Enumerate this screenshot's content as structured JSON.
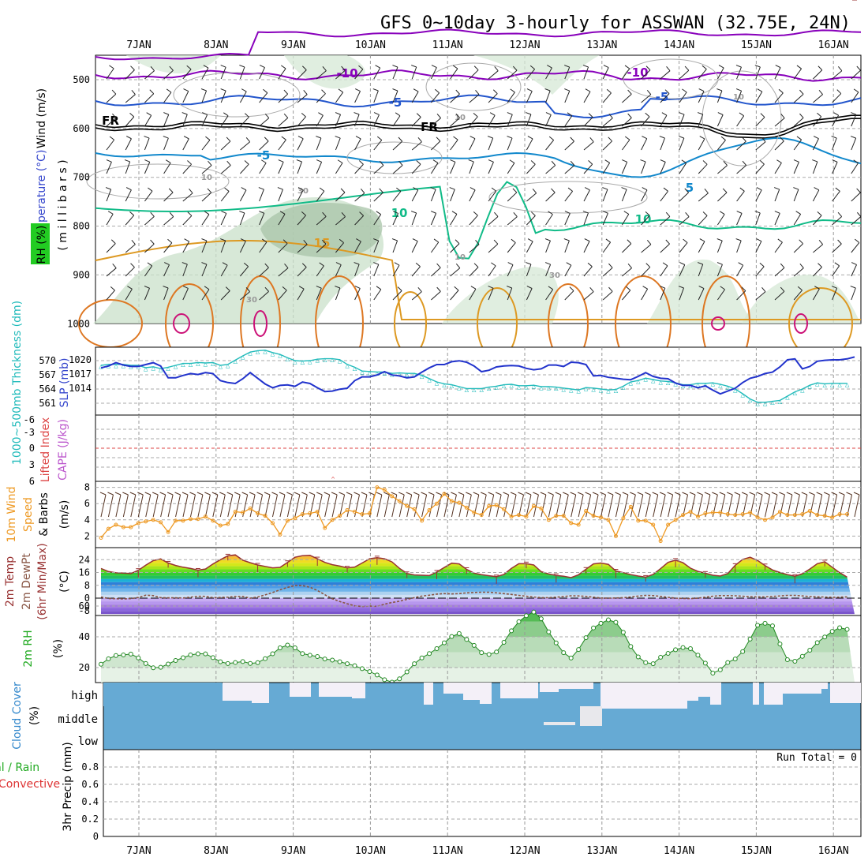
{
  "title": "GFS 0~10day 3-hourly for ASSWAN (32.75E, 24N)",
  "dates": [
    "7JAN",
    "8JAN",
    "9JAN",
    "10JAN",
    "11JAN",
    "12JAN",
    "13JAN",
    "14JAN",
    "15JAN",
    "16JAN"
  ],
  "panels": {
    "upper": {
      "label_wind": "Wind (m/s)",
      "label_temp": "Temperature (°C)",
      "label_rh": "RH (%)",
      "label_mb": "( m i l l i b a r s )",
      "yticks": [
        "500",
        "600",
        "700",
        "800",
        "900",
        "1000"
      ],
      "contour_labels": [
        "-10",
        "-10",
        "-5",
        "-5",
        "FR",
        "FR",
        "-5",
        "5",
        "10",
        "10",
        "15",
        "10",
        "30",
        "30",
        "10",
        "30",
        "10",
        "10"
      ]
    },
    "thickness": {
      "label_thk": "1000~500mb Thickness (dm)",
      "label_slp": "SLP (mb)",
      "yticks_left": [
        "570",
        "567",
        "564",
        "561"
      ],
      "yticks_right": [
        "1020",
        "1017",
        "1014"
      ]
    },
    "stability": {
      "label_li": "Lifted Index",
      "label_cape": "CAPE (J/kg)",
      "yticks": [
        "-6",
        "-3",
        "0",
        "3",
        "6"
      ]
    },
    "wind10": {
      "label1": "10m Wind",
      "label2": "Speed",
      "label3": "& Barbs",
      "unit": "(m/s)",
      "yticks": [
        "8",
        "6",
        "4",
        "2"
      ]
    },
    "temp2m": {
      "label1": "2m Temp",
      "label2": "2m DewPt",
      "label3": "(6hr Min/Max)",
      "unit": "(°C)",
      "yticks": [
        "24",
        "16",
        "8",
        "0",
        "-8"
      ]
    },
    "rh2m": {
      "label": "2m RH",
      "unit": "(%)",
      "yticks": [
        "60",
        "40",
        "20"
      ]
    },
    "cloud": {
      "label": "Cloud Cover",
      "unit": "(%)",
      "levels": [
        "high",
        "middle",
        "low"
      ]
    },
    "precip": {
      "label1": "Total / Rain",
      "label2": "Convective",
      "axis_label": "3hr Precip (mm)",
      "run_total": "Run Total = 0",
      "yticks": [
        "0.8",
        "0.6",
        "0.4",
        "0.2",
        "0"
      ]
    }
  },
  "colors": {
    "slp": "#2233cc",
    "thickness": "#22bbbb",
    "wind_speed": "#ee9922",
    "temp_line": "#993333",
    "dewpoint": "#885544",
    "rh_fill": "#55bb55",
    "cloud": "#66aad4",
    "cloud_clear": "#f4f0f8",
    "temp_neg10": "#8800bb",
    "temp_neg5": "#2255cc",
    "temp_fr": "#000000",
    "temp_5": "#1188cc",
    "temp_10": "#11bb88",
    "temp_15": "#dd9922",
    "temp_20": "#dd7722",
    "temp_25": "#cc1177"
  },
  "chart_data": [
    {
      "type": "line",
      "title": "SLP (mb)",
      "x_unit": "3-hourly steps from 6 Jan 12Z",
      "ylim": [
        1012,
        1022
      ],
      "series": [
        {
          "name": "SLP (mb)",
          "values": [
            1018.3,
            1018.7,
            1019.4,
            1018.9,
            1018.6,
            1018.6,
            1019.0,
            1019.4,
            1018.7,
            1016.2,
            1016.2,
            1016.7,
            1017.1,
            1016.9,
            1017.3,
            1017.1,
            1015.6,
            1015.2,
            1015.0,
            1016.0,
            1017.3,
            1016.1,
            1014.9,
            1014.1,
            1014.6,
            1014.7,
            1014.4,
            1015.3,
            1015.0,
            1014.1,
            1013.3,
            1013.4,
            1013.8,
            1014.0,
            1015.6,
            1016.4,
            1016.4,
            1016.8,
            1017.5,
            1016.8,
            1016.6,
            1016.2,
            1016.4,
            1017.4,
            1018.3,
            1019.0,
            1019.0,
            1019.6,
            1019.8,
            1019.5,
            1018.7,
            1017.5,
            1017.8,
            1018.5,
            1018.7,
            1018.8,
            1018.7,
            1018.2,
            1017.9,
            1018.1,
            1018.9,
            1018.9,
            1018.6,
            1019.5,
            1019.4,
            1019.0,
            1016.6,
            1016.7,
            1016.3,
            1016.1,
            1015.9,
            1015.8,
            1016.5,
            1017.3,
            1016.5,
            1016.1,
            1016.0,
            1015.1,
            1014.6,
            1014.6,
            1014.1,
            1014.5,
            1013.6,
            1012.8,
            1013.4,
            1014.0,
            1015.2,
            1016.1,
            1016.5,
            1017.1,
            1017.4,
            1018.5,
            1020.0,
            1020.2,
            1018.1,
            1018.6,
            1019.7,
            1019.9,
            1020.0,
            1020.0,
            1020.2,
            1020.6
          ]
        }
      ]
    },
    {
      "type": "line",
      "title": "1000~500mb Thickness (dm)",
      "x_unit": "3-hourly steps from 6 Jan 12Z",
      "ylim": [
        559,
        573
      ],
      "series": [
        {
          "name": "1000~500mb Thickness (dm)",
          "values": [
            569.0,
            569.2,
            569.2,
            569.2,
            569.0,
            569.0,
            568.5,
            568.7,
            568.3,
            568.6,
            569.0,
            569.4,
            569.4,
            569.6,
            569.5,
            569.6,
            569.0,
            569.2,
            570.1,
            571.0,
            571.8,
            572.1,
            572.2,
            571.7,
            571.3,
            570.6,
            570.0,
            569.9,
            570.0,
            570.3,
            570.4,
            570.4,
            570.2,
            569.2,
            568.6,
            567.8,
            567.7,
            567.6,
            567.6,
            567.3,
            567.4,
            567.3,
            567.3,
            566.9,
            566.2,
            565.5,
            565.1,
            564.9,
            564.5,
            564.1,
            564.1,
            564.1,
            564.4,
            564.6,
            564.9,
            565.0,
            564.7,
            564.7,
            564.8,
            564.5,
            564.5,
            564.4,
            564.2,
            564.0,
            563.8,
            564.3,
            564.2,
            564.0,
            563.8,
            563.9,
            564.6,
            565.5,
            565.8,
            566.3,
            566.0,
            565.7,
            565.6,
            565.3,
            564.9,
            564.9,
            565.2,
            565.2,
            565.3,
            565.0,
            564.6,
            564.0,
            563.0,
            561.9,
            561.2,
            561.2,
            561.4,
            561.6,
            562.5,
            563.4,
            564.0,
            564.8,
            565.3,
            565.1,
            565.2,
            565.2,
            565.2
          ]
        }
      ]
    },
    {
      "type": "line",
      "title": "10m Wind Speed (m/s)",
      "x_unit": "3-hourly steps from 6 Jan 12Z",
      "ylim": [
        0,
        9
      ],
      "series": [
        {
          "name": "10m Wind Speed (m/s)",
          "values": [
            1.8,
            2.9,
            3.4,
            3.1,
            3.1,
            3.6,
            3.8,
            4.0,
            3.7,
            2.5,
            3.9,
            3.9,
            4.1,
            4.1,
            4.4,
            3.9,
            3.3,
            3.5,
            5.0,
            4.9,
            5.4,
            4.8,
            4.5,
            3.6,
            2.2,
            3.9,
            4.2,
            4.7,
            4.8,
            5.0,
            3.0,
            4.0,
            4.5,
            5.2,
            5.0,
            4.7,
            4.8,
            8.0,
            7.7,
            6.9,
            6.3,
            5.7,
            5.3,
            3.9,
            5.2,
            6.0,
            7.2,
            6.3,
            6.1,
            5.5,
            4.9,
            4.6,
            5.7,
            5.8,
            5.3,
            4.4,
            4.6,
            4.4,
            5.7,
            5.4,
            4.0,
            4.5,
            4.5,
            3.6,
            3.4,
            5.1,
            4.5,
            4.3,
            4.0,
            2.0,
            4.2,
            5.6,
            3.9,
            3.9,
            3.4,
            1.4,
            3.4,
            4.0,
            4.6,
            5.0,
            4.4,
            4.8,
            4.9,
            4.9,
            4.7,
            4.6,
            4.7,
            4.9,
            4.3,
            4.0,
            4.3,
            5.0,
            4.6,
            4.6,
            4.7,
            5.1,
            4.6,
            4.5,
            4.3,
            4.7,
            4.7
          ]
        }
      ]
    },
    {
      "type": "area",
      "title": "2m Temp (°C)",
      "x_unit": "3-hourly steps from 6 Jan 12Z",
      "ylim": [
        -10,
        30
      ],
      "series": [
        {
          "name": "2m Temp (°C)",
          "values": [
            18.5,
            16.6,
            15.8,
            15.6,
            15.3,
            17.4,
            20.6,
            23.4,
            24.5,
            21.9,
            20.4,
            19.3,
            18.5,
            17.5,
            18.2,
            21.3,
            24.0,
            26.4,
            27.0,
            23.7,
            22.1,
            20.7,
            19.8,
            18.9,
            19.2,
            22.3,
            25.5,
            26.5,
            26.7,
            24.6,
            22.3,
            20.9,
            20.0,
            18.9,
            19.4,
            21.9,
            24.6,
            25.2,
            24.6,
            22.6,
            18.6,
            15.4,
            14.5,
            14.3,
            14.1,
            16.3,
            19.1,
            21.8,
            21.4,
            18.0,
            15.6,
            14.7,
            14.0,
            13.4,
            14.8,
            18.5,
            21.5,
            21.5,
            20.7,
            16.5,
            15.1,
            14.2,
            13.7,
            12.8,
            14.6,
            18.1,
            21.4,
            21.9,
            21.1,
            17.0,
            15.9,
            14.7,
            13.8,
            13.1,
            14.8,
            18.4,
            22.3,
            23.7,
            22.1,
            18.7,
            16.7,
            15.6,
            14.3,
            13.8,
            15.3,
            20.5,
            24.2,
            25.5,
            23.5,
            20.3,
            17.6,
            16.0,
            14.7,
            13.7,
            15.2,
            18.2,
            21.5,
            22.7,
            19.3,
            15.9,
            13.1
          ]
        },
        {
          "name": "2m DewPt (°C)",
          "values": [
            0.7,
            -0.2,
            -0.4,
            -0.5,
            -0.3,
            0.4,
            1.8,
            1.6,
            0.3,
            0.2,
            0.2,
            0.1,
            0.6,
            1.2,
            1.1,
            0.3,
            0.4,
            0.6,
            1.1,
            1.1,
            0.0,
            0.7,
            2.0,
            3.5,
            5.2,
            6.7,
            7.9,
            7.8,
            6.8,
            4.8,
            2.1,
            -0.4,
            -2.1,
            -3.5,
            -4.8,
            -5.2,
            -5.0,
            -5.1,
            -3.8,
            -2.7,
            -1.9,
            -0.8,
            0.3,
            1.3,
            1.8,
            2.5,
            2.8,
            2.6,
            2.8,
            3.3,
            3.5,
            3.7,
            3.7,
            3.3,
            2.8,
            2.3,
            1.7,
            1.2,
            0.7,
            0.3,
            0.3,
            0.6,
            1.0,
            1.5,
            1.4,
            1.1,
            0.6,
            0.1,
            0.0,
            0.1,
            0.3,
            0.7,
            1.3,
            1.7,
            1.6,
            1.1,
            0.5,
            0.0,
            -0.2,
            -0.3,
            0.0,
            0.6,
            1.2,
            1.6,
            1.6,
            1.5,
            1.2,
            0.9,
            0.8,
            0.8,
            1.1,
            1.4,
            1.7,
            1.7,
            1.4,
            1.0,
            0.8,
            0.7,
            0.5,
            0.6,
            0.8
          ]
        }
      ]
    },
    {
      "type": "area",
      "title": "2m RH (%)",
      "x_unit": "3-hourly steps from 6 Jan 12Z",
      "ylim": [
        0,
        62
      ],
      "series": [
        {
          "name": "2m RH (%)",
          "values": [
            22.2,
            25.7,
            27.8,
            28.2,
            28.8,
            26.3,
            22.6,
            19.9,
            20.2,
            22.3,
            24.6,
            26.4,
            28.2,
            29.0,
            28.9,
            26.5,
            23.8,
            22.6,
            23.3,
            23.9,
            22.7,
            23.2,
            25.8,
            29.0,
            32.8,
            34.6,
            32.8,
            29.1,
            28.0,
            27.2,
            25.6,
            24.9,
            23.8,
            22.5,
            21.2,
            19.3,
            17.4,
            15.2,
            12.1,
            10.5,
            12.7,
            17.2,
            22.5,
            26.3,
            29.1,
            32.3,
            36.1,
            40.2,
            42.1,
            38.3,
            34.4,
            29.7,
            28.5,
            30.1,
            36.4,
            43.9,
            49.8,
            53.7,
            56.1,
            51.7,
            43.2,
            36.0,
            29.7,
            26.2,
            31.7,
            39.4,
            45.8,
            48.8,
            51.0,
            49.4,
            42.9,
            33.7,
            26.9,
            23.2,
            22.5,
            26.7,
            29.2,
            31.6,
            33.0,
            32.3,
            28.1,
            22.9,
            16.4,
            18.5,
            23.3,
            25.6,
            30.4,
            38.5,
            47.5,
            48.8,
            47.1,
            35.3,
            25.1,
            24.1,
            27.3,
            31.3,
            36.2,
            39.9,
            43.5,
            45.9,
            44.8
          ]
        }
      ]
    },
    {
      "type": "heatmap",
      "title": "Cloud Cover (%)",
      "rows": [
        "high",
        "middle",
        "low"
      ],
      "note": "high: clear during 8-9JAN, 10-11JAN, 12JAN, 14JAN, 15-16JAN intervals; otherwise overcast"
    },
    {
      "type": "bar",
      "title": "3hr Precip (mm)",
      "ylim": [
        0,
        0.9
      ],
      "series": [
        {
          "name": "Total / Rain",
          "values": []
        }
      ]
    }
  ]
}
